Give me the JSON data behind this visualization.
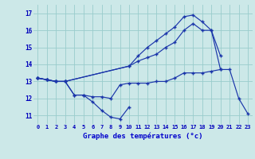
{
  "title": "Graphe des températures (°c)",
  "x_labels": [
    "0",
    "1",
    "2",
    "3",
    "4",
    "5",
    "6",
    "7",
    "8",
    "9",
    "10",
    "11",
    "12",
    "13",
    "14",
    "15",
    "16",
    "17",
    "18",
    "19",
    "20",
    "21",
    "22",
    "23"
  ],
  "ylim": [
    10.5,
    17.5
  ],
  "yticks": [
    11,
    12,
    13,
    14,
    15,
    16,
    17
  ],
  "line1_x": [
    0,
    1,
    2,
    3,
    4,
    5,
    6,
    7,
    8,
    9,
    10
  ],
  "line1_y": [
    13.2,
    13.1,
    13.0,
    13.0,
    12.2,
    12.2,
    11.8,
    11.3,
    10.9,
    10.8,
    11.5
  ],
  "line2_x": [
    0,
    1,
    2,
    3,
    4,
    5,
    6,
    7,
    8,
    9,
    10,
    11,
    12,
    13,
    14,
    15,
    16,
    17,
    18,
    19,
    20,
    21,
    22,
    23
  ],
  "line2_y": [
    13.2,
    13.1,
    13.0,
    13.0,
    12.2,
    12.2,
    12.1,
    12.1,
    12.0,
    12.8,
    12.9,
    12.9,
    12.9,
    13.0,
    13.0,
    13.2,
    13.5,
    13.5,
    13.5,
    13.6,
    13.7,
    13.7,
    12.0,
    11.1
  ],
  "line3_x": [
    0,
    1,
    2,
    3,
    10,
    11,
    12,
    13,
    14,
    15,
    16,
    17,
    18,
    19,
    20
  ],
  "line3_y": [
    13.2,
    13.1,
    13.0,
    13.0,
    13.9,
    14.2,
    14.4,
    14.6,
    15.0,
    15.3,
    16.0,
    16.4,
    16.0,
    16.0,
    14.5
  ],
  "line4_x": [
    0,
    1,
    2,
    3,
    10,
    11,
    12,
    13,
    14,
    15,
    16,
    17,
    18,
    19,
    20
  ],
  "line4_y": [
    13.2,
    13.1,
    13.0,
    13.0,
    13.9,
    14.5,
    15.0,
    15.4,
    15.8,
    16.2,
    16.8,
    16.9,
    16.5,
    16.0,
    13.7
  ],
  "line_color": "#1a35aa",
  "bg_color": "#cce8e8",
  "grid_color": "#99cccc",
  "label_color": "#0000bb",
  "title_color": "#0000cc"
}
